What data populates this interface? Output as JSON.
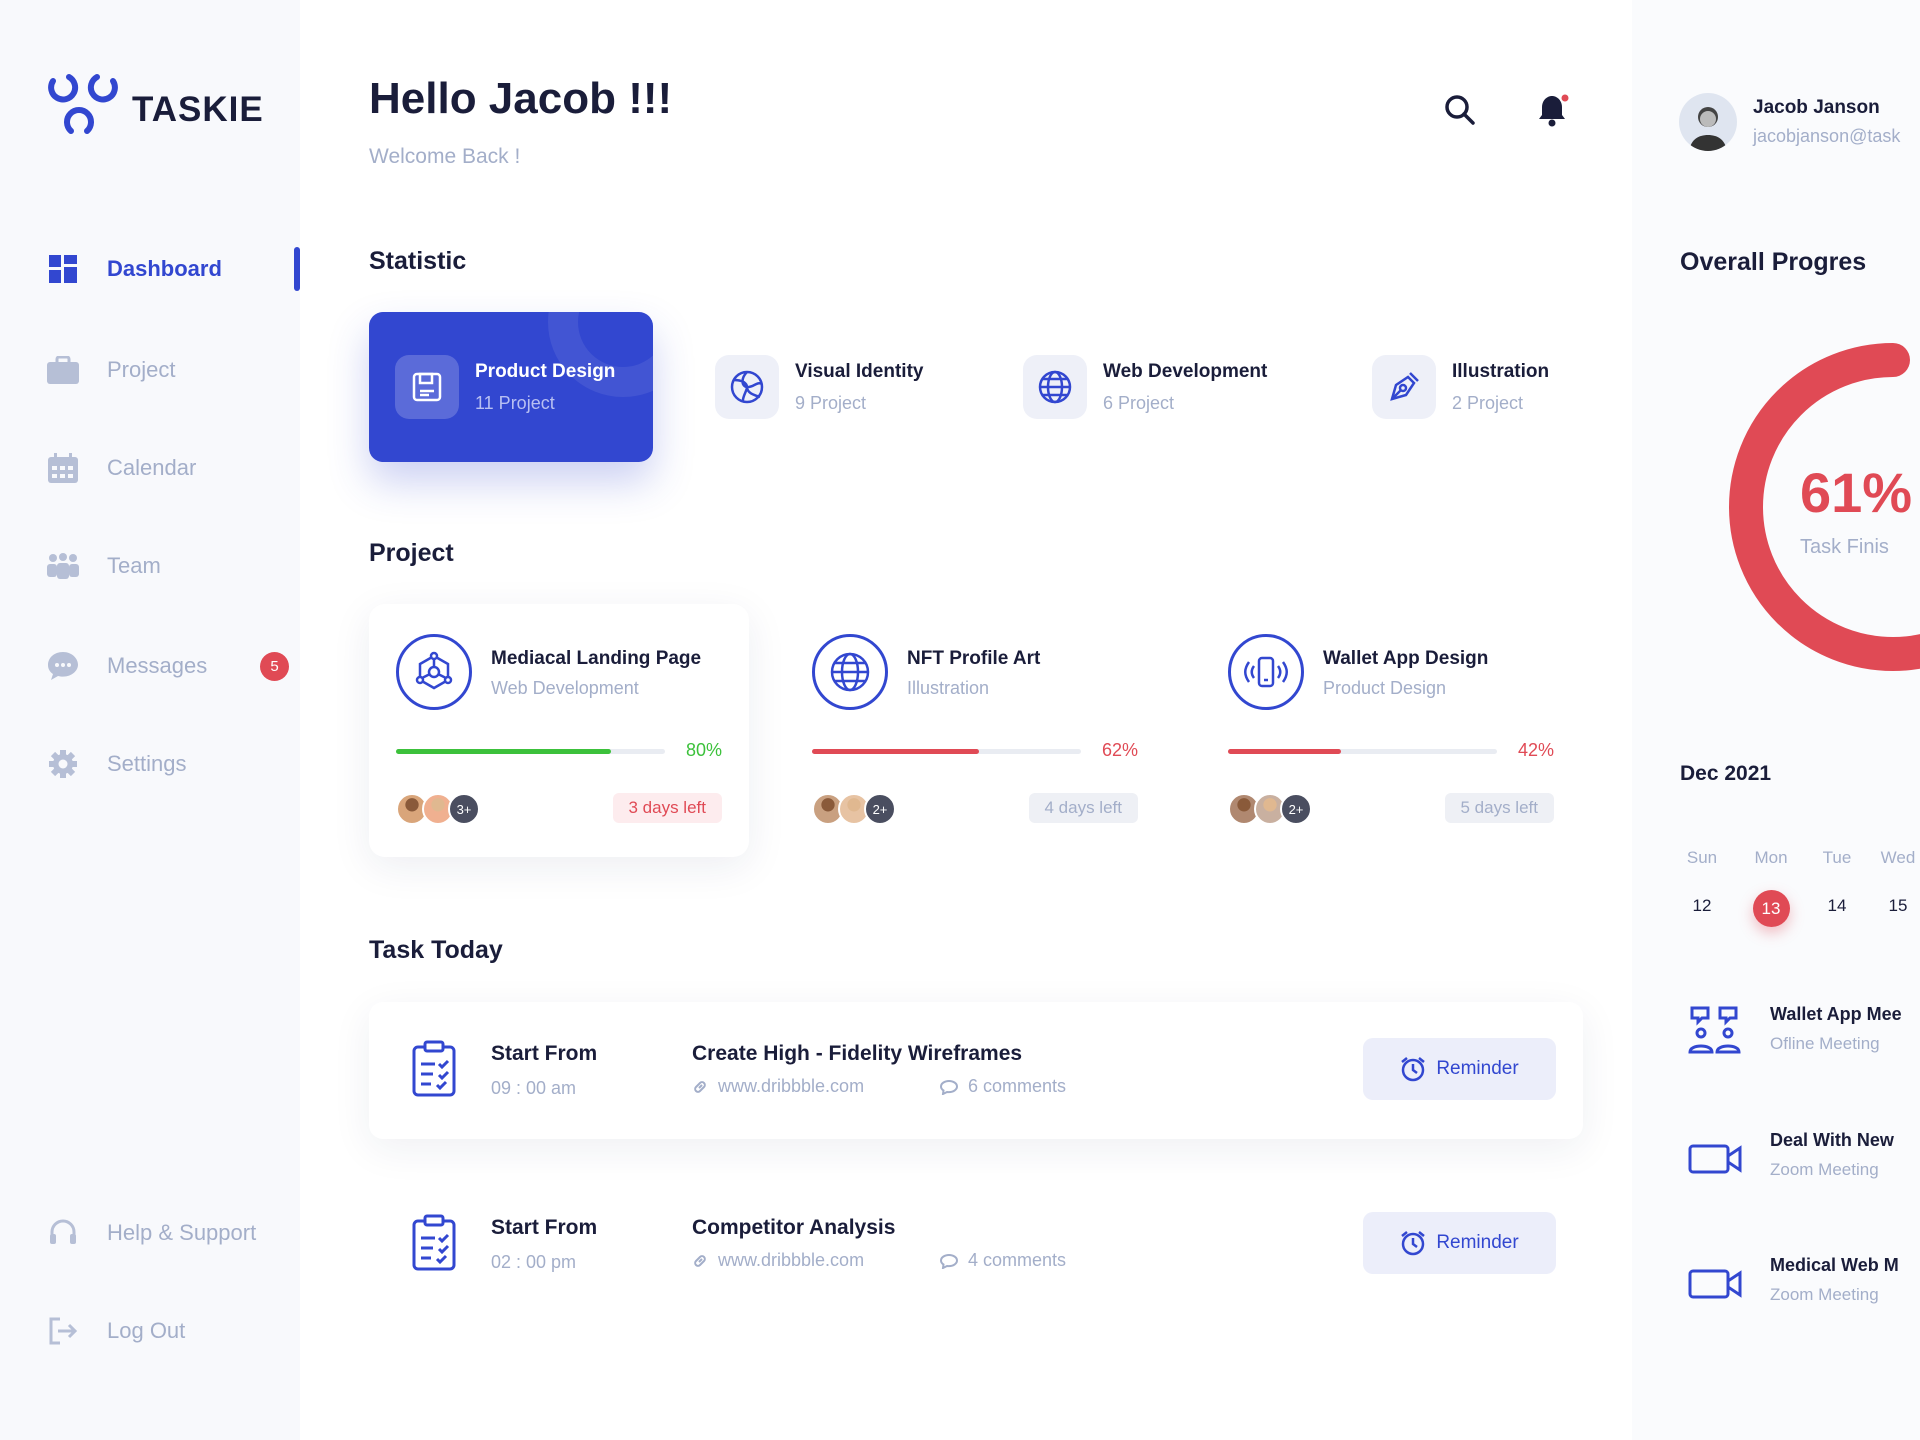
{
  "app": {
    "name": "TASKIE"
  },
  "sidebar": {
    "items": [
      {
        "label": "Dashboard",
        "icon": "grid-icon",
        "active": true
      },
      {
        "label": "Project",
        "icon": "briefcase-icon"
      },
      {
        "label": "Calendar",
        "icon": "calendar-icon"
      },
      {
        "label": "Team",
        "icon": "team-icon"
      },
      {
        "label": "Messages",
        "icon": "chat-icon",
        "badge": "5"
      },
      {
        "label": "Settings",
        "icon": "gear-icon"
      }
    ],
    "bottom": [
      {
        "label": "Help & Support",
        "icon": "headset-icon"
      },
      {
        "label": "Log Out",
        "icon": "logout-icon"
      }
    ]
  },
  "header": {
    "greeting": "Hello Jacob !!!",
    "subtitle": "Welcome Back !"
  },
  "user": {
    "name": "Jacob Janson",
    "email": "jacobjanson@task"
  },
  "statistic": {
    "title": "Statistic",
    "cards": [
      {
        "title": "Product Design",
        "count": "11 Project",
        "icon": "save-icon"
      },
      {
        "title": "Visual Identity",
        "count": "9 Project",
        "icon": "spiral-icon"
      },
      {
        "title": "Web Development",
        "count": "6 Project",
        "icon": "globe-icon"
      },
      {
        "title": "Illustration",
        "count": "2 Project",
        "icon": "pen-tool-icon"
      }
    ]
  },
  "projects": {
    "title": "Project",
    "items": [
      {
        "title": "Mediacal Landing Page",
        "category": "Web Development",
        "progress": 80,
        "progress_label": "80%",
        "color": "#3cc13b",
        "members_more": "3+",
        "days_left": "3 days left"
      },
      {
        "title": "NFT Profile Art",
        "category": "Illustration",
        "progress": 62,
        "progress_label": "62%",
        "color": "#e04a55",
        "members_more": "2+",
        "days_left": "4 days left"
      },
      {
        "title": "Wallet App Design",
        "category": "Product Design",
        "progress": 42,
        "progress_label": "42%",
        "color": "#e04a55",
        "members_more": "2+",
        "days_left": "5 days left"
      }
    ]
  },
  "tasks": {
    "title": "Task Today",
    "items": [
      {
        "start_label": "Start From",
        "time": "09 : 00 am",
        "title": "Create High - Fidelity Wireframes",
        "link": "www.dribbble.com",
        "comments": "6 comments",
        "button": "Reminder"
      },
      {
        "start_label": "Start From",
        "time": "02 : 00 pm",
        "title": "Competitor Analysis",
        "link": "www.dribbble.com",
        "comments": "4 comments",
        "button": "Reminder"
      }
    ]
  },
  "progress": {
    "title": "Overall Progres",
    "value": 61,
    "value_label": "61%",
    "caption": "Task Finis",
    "color": "#e04a55"
  },
  "calendar": {
    "month": "Dec 2021",
    "days": [
      {
        "name": "Sun",
        "date": "12"
      },
      {
        "name": "Mon",
        "date": "13",
        "selected": true
      },
      {
        "name": "Tue",
        "date": "14"
      },
      {
        "name": "Wed",
        "date": "15"
      }
    ]
  },
  "meetings": [
    {
      "title": "Wallet App Mee",
      "type": "Ofline Meeting",
      "icon": "meeting-people-icon"
    },
    {
      "title": "Deal With New",
      "type": "Zoom Meeting",
      "icon": "video-camera-icon"
    },
    {
      "title": "Medical Web M",
      "type": "Zoom Meeting",
      "icon": "video-camera-icon"
    }
  ],
  "colors": {
    "primary": "#3247d0",
    "danger": "#e04a55",
    "success": "#3cc13b"
  }
}
